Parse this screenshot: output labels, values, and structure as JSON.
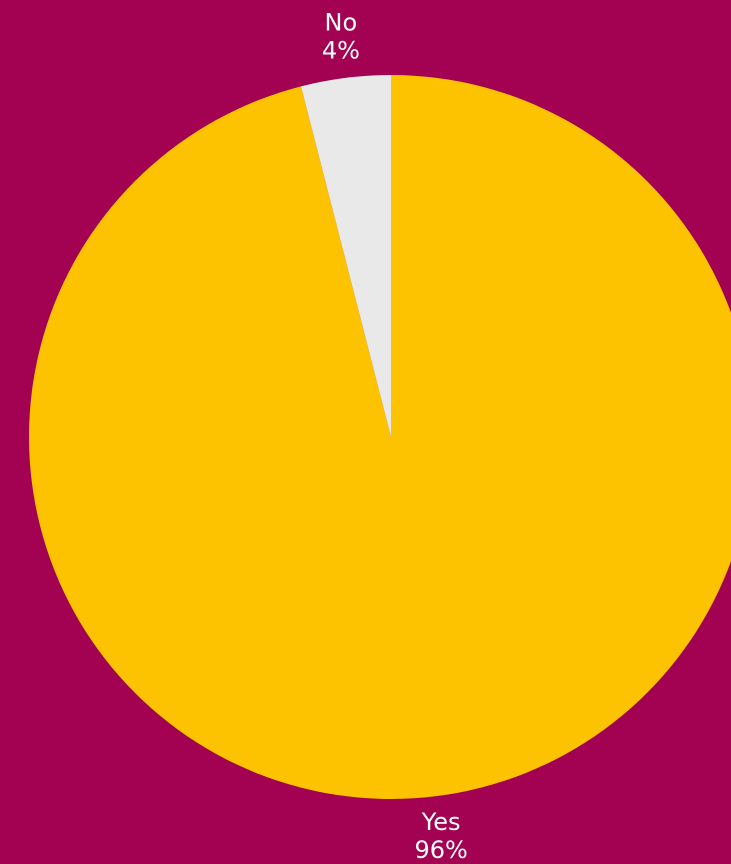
{
  "background_color": "#A30253",
  "chart_data": {
    "type": "pie",
    "title": "",
    "start_angle_deg": 0,
    "direction": "clockwise",
    "slices": [
      {
        "label": "Yes",
        "value": 96,
        "value_label": "96%",
        "color": "#FDC300"
      },
      {
        "label": "No",
        "value": 4,
        "value_label": "4%",
        "color": "#EAE9EA"
      }
    ]
  }
}
